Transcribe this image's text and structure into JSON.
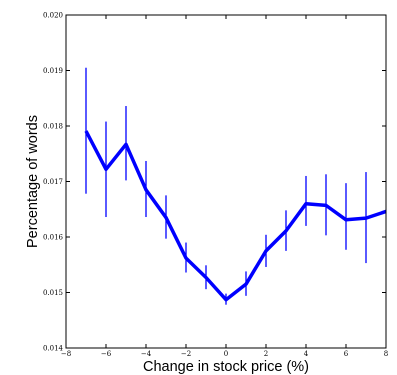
{
  "chart_data": {
    "type": "line",
    "title": "",
    "xlabel": "Change in stock price (%)",
    "ylabel": "Percentage of words",
    "xlim": [
      -8,
      8
    ],
    "ylim": [
      0.014,
      0.02
    ],
    "x_ticks": [
      -8,
      -6,
      -4,
      -2,
      0,
      2,
      4,
      6,
      8
    ],
    "x_tick_labels": [
      "−8",
      "−6",
      "−4",
      "−2",
      "0",
      "2",
      "4",
      "6",
      "8"
    ],
    "y_ticks": [
      0.014,
      0.015,
      0.016,
      0.017,
      0.018,
      0.019,
      0.02
    ],
    "y_tick_labels": [
      "0.014",
      "0.015",
      "0.016",
      "0.017",
      "0.018",
      "0.019",
      "0.020"
    ],
    "grid": false,
    "legend": "none",
    "series": [
      {
        "color": "#0000ff",
        "x": [
          -7,
          -6,
          -5,
          -4,
          -3,
          -2,
          -1,
          0,
          1,
          2,
          3,
          4,
          5,
          6,
          7,
          8
        ],
        "y": [
          0.01791,
          0.01722,
          0.01767,
          0.01685,
          0.01635,
          0.01562,
          0.01527,
          0.01487,
          0.01515,
          0.01575,
          0.01611,
          0.0166,
          0.01657,
          0.01631,
          0.01634,
          0.01646
        ],
        "error_low": [
          0.01678,
          0.01636,
          0.01702,
          0.01636,
          0.01597,
          0.01536,
          0.01506,
          0.01478,
          0.01494,
          0.01546,
          0.01575,
          0.0162,
          0.01603,
          0.01577,
          0.01553,
          null
        ],
        "error_high": [
          0.01905,
          0.01808,
          0.01836,
          0.01737,
          0.01675,
          0.0159,
          0.01549,
          0.01498,
          0.01538,
          0.01604,
          0.01648,
          0.0171,
          0.01713,
          0.01697,
          0.01717,
          null
        ]
      }
    ]
  }
}
